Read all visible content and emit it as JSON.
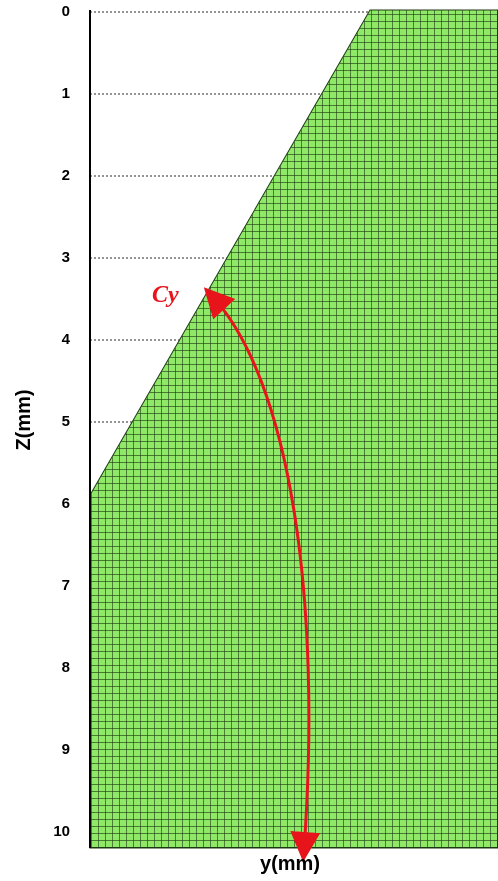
{
  "y_axis": {
    "label": "Z(mm)",
    "ticks": [
      0,
      1,
      2,
      3,
      4,
      5,
      6,
      7,
      8,
      9,
      10
    ]
  },
  "x_axis": {
    "label": "y(mm)"
  },
  "annotation": "Cy"
}
